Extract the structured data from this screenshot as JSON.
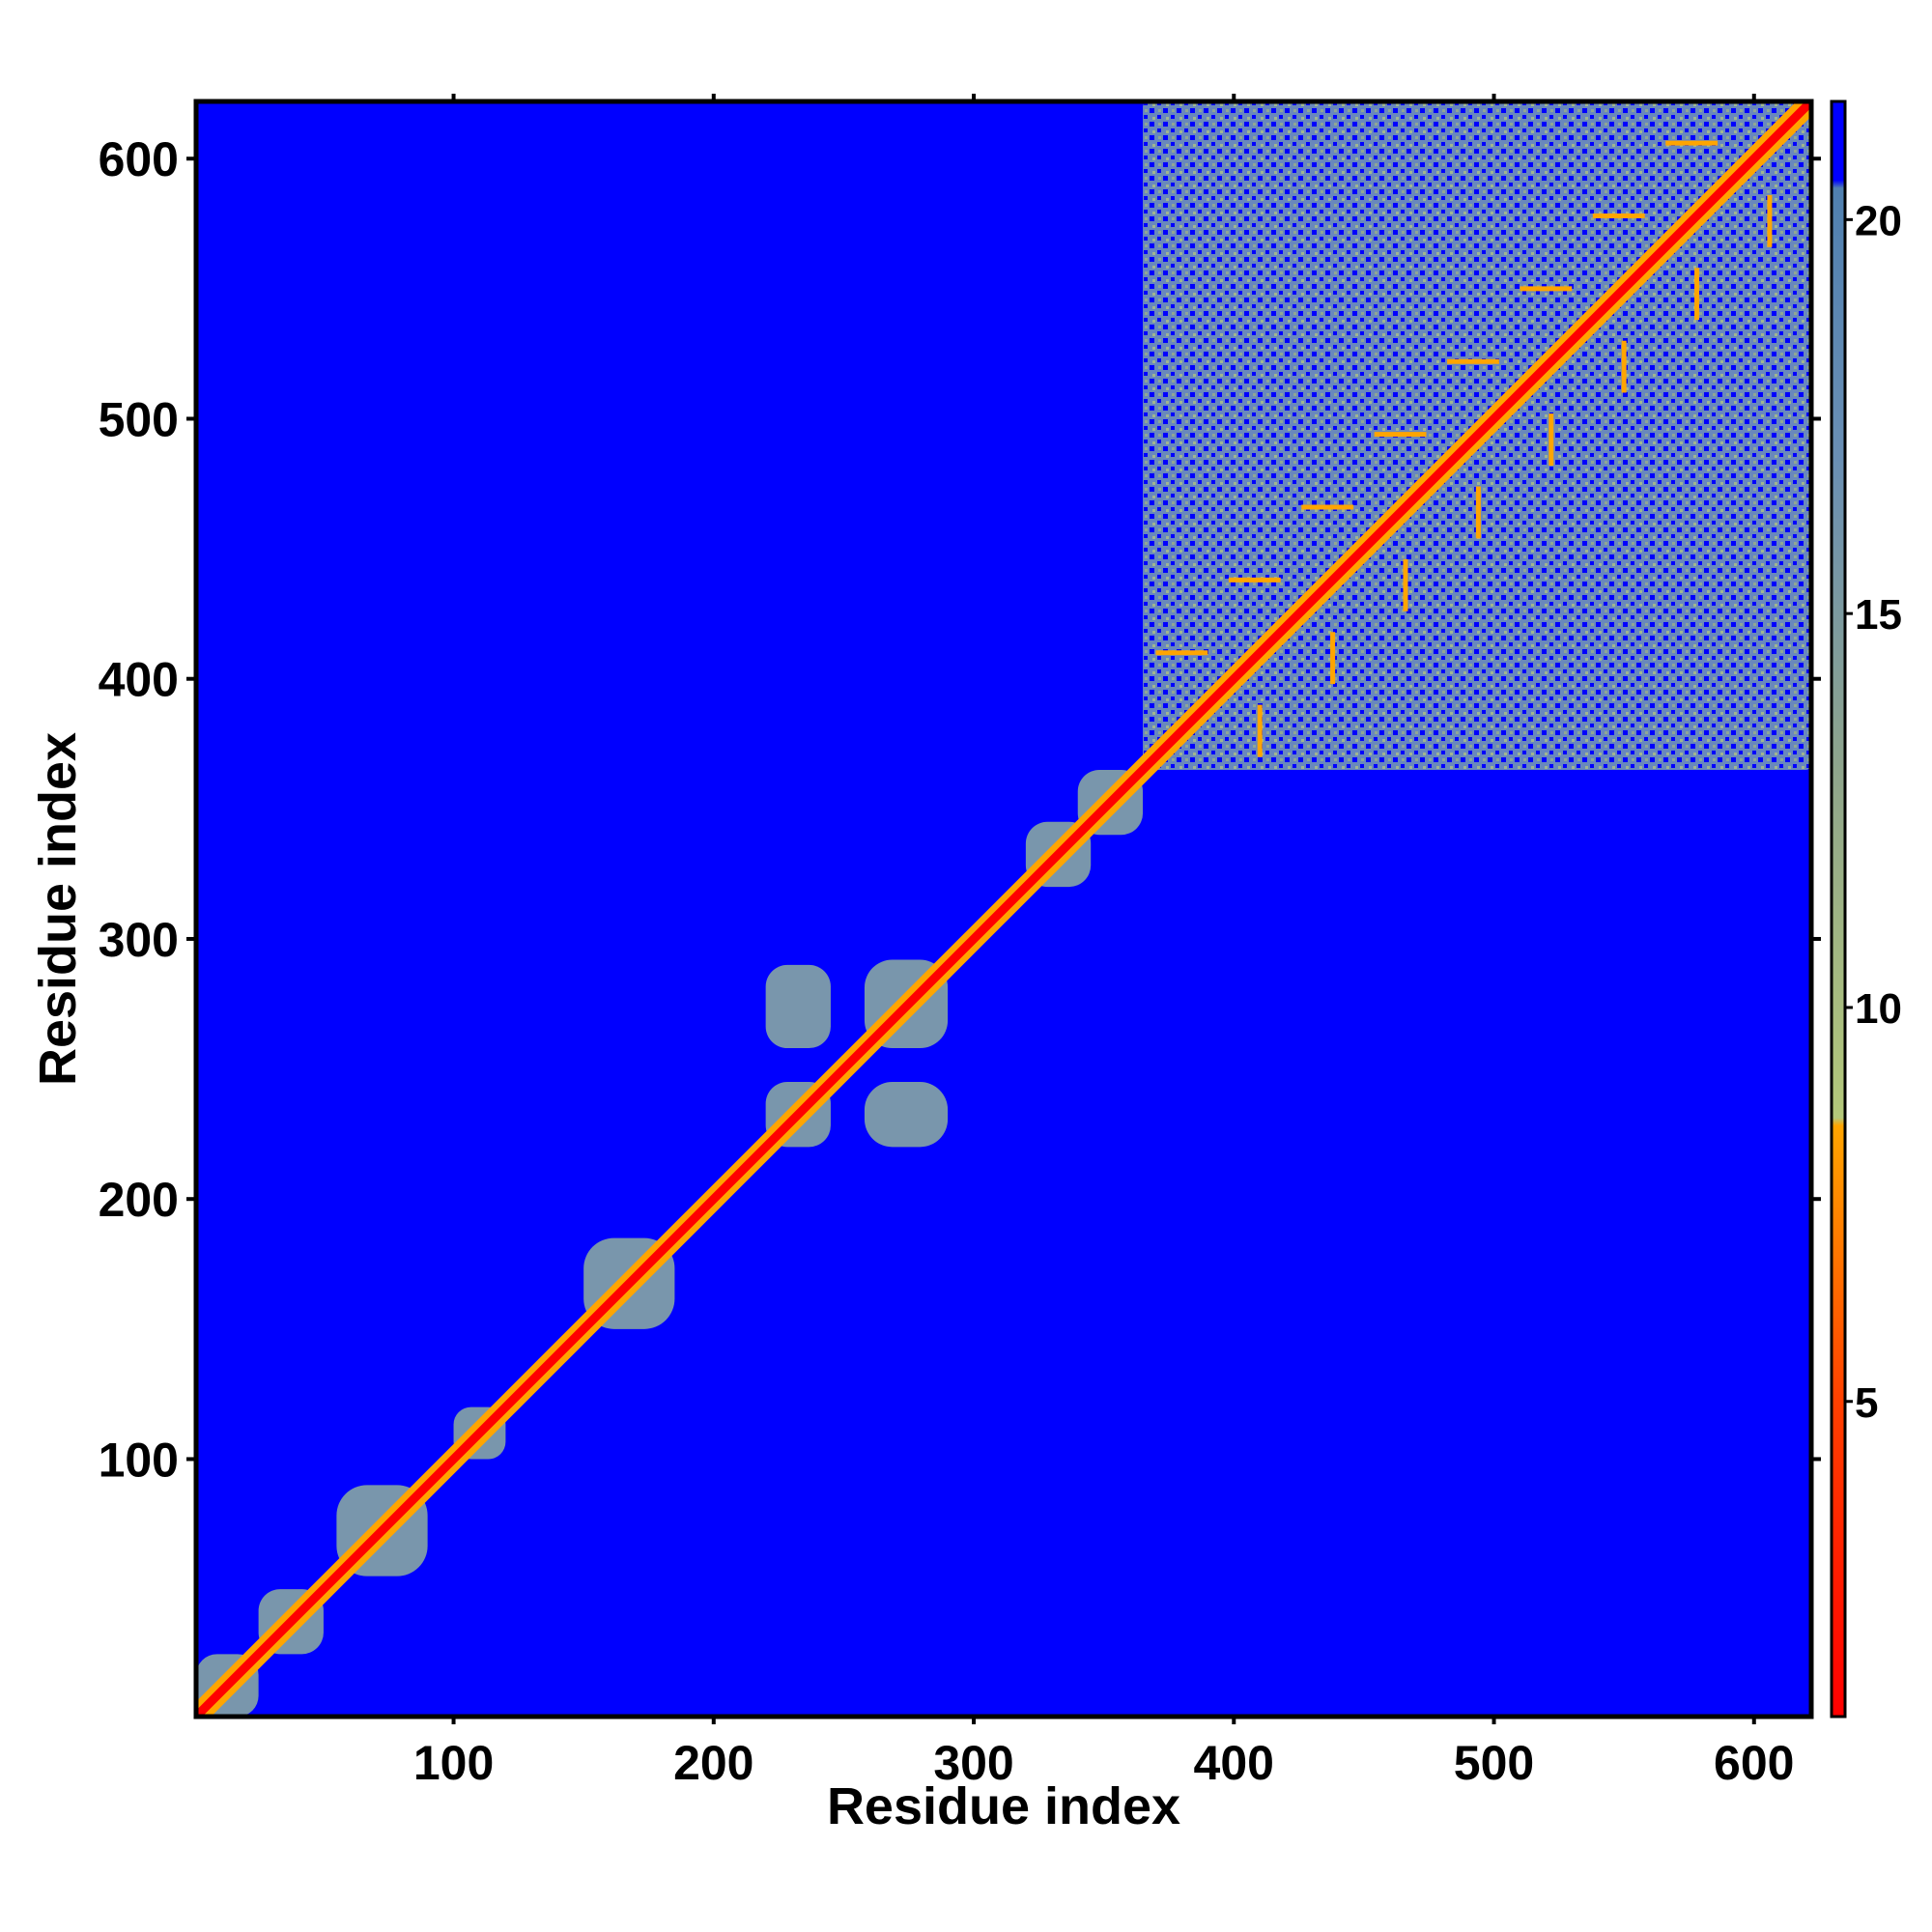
{
  "chart_data": {
    "type": "heatmap",
    "title": "",
    "xlabel": "Residue index",
    "ylabel": "Residue index",
    "xlim": [
      1,
      622
    ],
    "ylim": [
      1,
      622
    ],
    "x_ticks": [
      100,
      200,
      300,
      400,
      500,
      600
    ],
    "y_ticks": [
      100,
      200,
      300,
      400,
      500,
      600
    ],
    "colorbar": {
      "range": [
        1,
        21.5
      ],
      "ticks": [
        5,
        10,
        15,
        20
      ],
      "stops": [
        {
          "value": 1,
          "color": "#ff0000"
        },
        {
          "value": 5,
          "color": "#ff4000"
        },
        {
          "value": 8.5,
          "color": "#ffa500"
        },
        {
          "value": 8.6,
          "color": "#b4c87a"
        },
        {
          "value": 13,
          "color": "#8fa58c"
        },
        {
          "value": 17,
          "color": "#6a8fb4"
        },
        {
          "value": 20.4,
          "color": "#5080b0"
        },
        {
          "value": 20.5,
          "color": "#0000ff"
        }
      ]
    },
    "background_value_color": "#0000ff",
    "diagonal": {
      "from": 1,
      "to": 622,
      "color": "#ff0000"
    },
    "contact_blocks": [
      {
        "x": [
          1,
          25
        ],
        "y": [
          1,
          25
        ],
        "level": "mid"
      },
      {
        "x": [
          25,
          50
        ],
        "y": [
          25,
          50
        ],
        "level": "mid"
      },
      {
        "x": [
          55,
          90
        ],
        "y": [
          55,
          90
        ],
        "level": "mid"
      },
      {
        "x": [
          100,
          120
        ],
        "y": [
          100,
          120
        ],
        "level": "mid"
      },
      {
        "x": [
          150,
          185
        ],
        "y": [
          150,
          185
        ],
        "level": "mid"
      },
      {
        "x": [
          220,
          245
        ],
        "y": [
          220,
          245
        ],
        "level": "mid"
      },
      {
        "x": [
          220,
          245
        ],
        "y": [
          258,
          290
        ],
        "level": "mid"
      },
      {
        "x": [
          258,
          290
        ],
        "y": [
          220,
          245
        ],
        "level": "mid"
      },
      {
        "x": [
          258,
          290
        ],
        "y": [
          258,
          292
        ],
        "level": "mid"
      },
      {
        "x": [
          320,
          345
        ],
        "y": [
          320,
          345
        ],
        "level": "mid"
      },
      {
        "x": [
          340,
          365
        ],
        "y": [
          340,
          365
        ],
        "level": "mid"
      },
      {
        "x": [
          365,
          622
        ],
        "y": [
          365,
          622
        ],
        "level": "dense"
      }
    ]
  }
}
